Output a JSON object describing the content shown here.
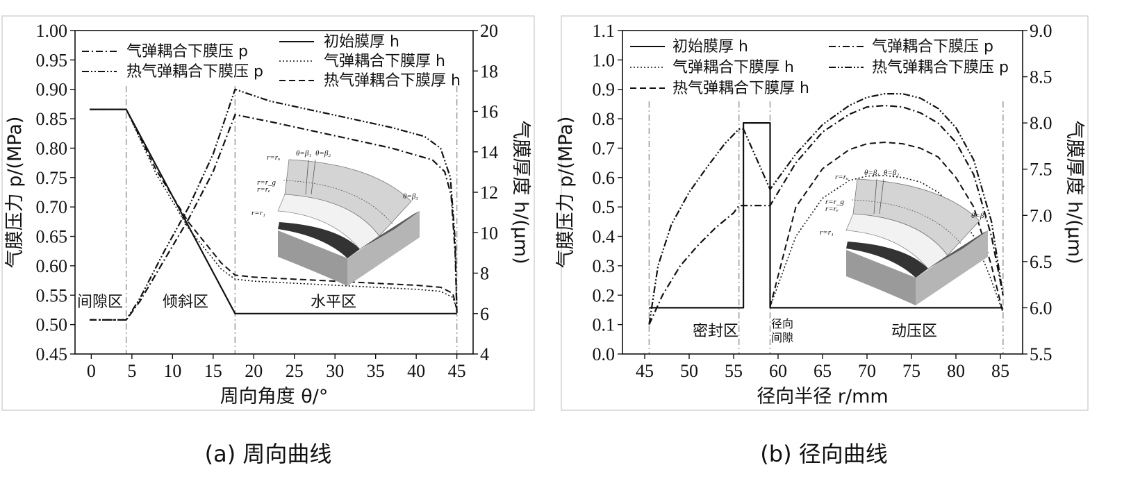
{
  "chart_data": [
    {
      "type": "line",
      "caption": "(a) 周向曲线",
      "xlabel": "周向角度 θ/°",
      "ylabel_left": "气膜压力 p/(MPa)",
      "ylabel_right": "气膜厚度 h/(μm)",
      "xlim": [
        -2,
        47
      ],
      "ylim_left": [
        0.45,
        1.0
      ],
      "ylim_right": [
        4,
        20
      ],
      "xticks": [
        "0",
        "5",
        "10",
        "15",
        "20",
        "25",
        "30",
        "35",
        "40",
        "45"
      ],
      "yticks_left": [
        "0.45",
        "0.50",
        "0.55",
        "0.60",
        "0.65",
        "0.70",
        "0.75",
        "0.80",
        "0.85",
        "0.90",
        "0.95",
        "1.00"
      ],
      "yticks_right": [
        "4",
        "6",
        "8",
        "10",
        "12",
        "14",
        "16",
        "18",
        "20"
      ],
      "regions": [
        "间隙区",
        "倾斜区",
        "水平区"
      ],
      "region_boundaries": [
        4.3,
        17.7,
        45.0
      ],
      "inset_labels": [
        "r=rₒ",
        "θ=β₁",
        "θ=β₂",
        "r=r_g",
        "r=rₑ",
        "θ=β₃",
        "r=r₁"
      ],
      "series": [
        {
          "name": "初始膜厚 h",
          "axis": "right",
          "style": "solid",
          "x": [
            -0.2,
            4.3,
            17.7,
            45.0
          ],
          "y": [
            16.1,
            16.1,
            6.0,
            6.0
          ]
        },
        {
          "name": "气弹耦合下膜厚 h",
          "axis": "right",
          "style": "dotted",
          "x": [
            -0.2,
            4.3,
            8,
            12,
            16,
            17.7,
            20,
            25,
            30,
            35,
            40,
            43,
            44.5,
            45.0
          ],
          "y": [
            16.1,
            16.1,
            12.9,
            10.2,
            8.2,
            7.7,
            7.6,
            7.5,
            7.4,
            7.3,
            7.2,
            7.1,
            6.8,
            6.2
          ]
        },
        {
          "name": "热气弹耦合下膜厚 h",
          "axis": "right",
          "style": "dashed",
          "x": [
            -0.2,
            4.3,
            8,
            12,
            16,
            17.7,
            20,
            25,
            30,
            35,
            40,
            43,
            44.5,
            45.0
          ],
          "y": [
            16.1,
            16.1,
            13.1,
            10.5,
            8.5,
            7.9,
            7.8,
            7.7,
            7.6,
            7.5,
            7.4,
            7.3,
            7.0,
            6.2
          ]
        },
        {
          "name": "气弹耦合下膜压 p",
          "axis": "left",
          "style": "dashdot",
          "x": [
            -0.2,
            4.3,
            6,
            9,
            12,
            15,
            17.7,
            22,
            27,
            32,
            37,
            42,
            43.5,
            44.3,
            44.8,
            45.0
          ],
          "y": [
            0.508,
            0.508,
            0.54,
            0.61,
            0.68,
            0.76,
            0.857,
            0.845,
            0.83,
            0.815,
            0.8,
            0.78,
            0.76,
            0.72,
            0.62,
            0.52
          ]
        },
        {
          "name": "热气弹耦合下膜压 p",
          "axis": "left",
          "style": "dashdotdot",
          "x": [
            -0.2,
            4.3,
            6,
            9,
            12,
            15,
            17.7,
            22,
            27,
            32,
            37,
            41,
            43,
            44.2,
            44.8,
            45.0
          ],
          "y": [
            0.508,
            0.508,
            0.545,
            0.625,
            0.7,
            0.79,
            0.9,
            0.88,
            0.865,
            0.85,
            0.835,
            0.82,
            0.8,
            0.75,
            0.64,
            0.52
          ]
        }
      ]
    },
    {
      "type": "line",
      "caption": "(b) 径向曲线",
      "xlabel": "径向半径 r/mm",
      "ylabel_left": "气膜压力 p/(MPa)",
      "ylabel_right": "气膜厚度 h/(μm)",
      "xlim": [
        42.5,
        87.5
      ],
      "ylim_left": [
        0.0,
        1.1
      ],
      "ylim_right": [
        5.5,
        9.0
      ],
      "xticks": [
        "45",
        "50",
        "55",
        "60",
        "65",
        "70",
        "75",
        "80",
        "85"
      ],
      "yticks_left": [
        "0.0",
        "0.1",
        "0.2",
        "0.3",
        "0.4",
        "0.5",
        "0.6",
        "0.7",
        "0.8",
        "0.9",
        "1.0",
        "1.1"
      ],
      "yticks_right": [
        "5.5",
        "6.0",
        "6.5",
        "7.0",
        "7.5",
        "8.0",
        "8.5",
        "9.0"
      ],
      "regions": [
        "密封区",
        "径向",
        "间隙",
        "动压区"
      ],
      "region_boundaries": [
        45.5,
        55.6,
        59.1,
        85.3
      ],
      "inset_labels": [
        "r=rₒ",
        "θ=β₁",
        "θ=β₂",
        "r=r_g",
        "r=rₑ",
        "θ=β₃",
        "r=r₁"
      ],
      "series": [
        {
          "name": "初始膜厚 h",
          "axis": "right",
          "style": "solid",
          "x": [
            45.5,
            55.6,
            56.1,
            56.1,
            59.1,
            59.1,
            85.3
          ],
          "y": [
            6.0,
            6.0,
            6.0,
            8.0,
            8.0,
            6.0,
            6.0
          ]
        },
        {
          "name": "气弹耦合下膜厚 h",
          "axis": "left",
          "style": "dotted",
          "x": [
            59.1,
            62,
            65,
            68,
            70,
            72,
            74,
            76,
            78,
            80,
            82,
            84,
            85.3
          ],
          "y": [
            0.16,
            0.4,
            0.53,
            0.59,
            0.605,
            0.607,
            0.6,
            0.585,
            0.55,
            0.49,
            0.4,
            0.25,
            0.14
          ]
        },
        {
          "name": "热气弹耦合下膜厚 h",
          "axis": "left",
          "style": "dashed",
          "x": [
            59.1,
            62,
            65,
            68,
            70,
            72,
            74,
            76,
            78,
            80,
            82,
            84,
            85.3
          ],
          "y": [
            0.16,
            0.5,
            0.63,
            0.695,
            0.715,
            0.72,
            0.715,
            0.7,
            0.67,
            0.6,
            0.5,
            0.3,
            0.14
          ]
        },
        {
          "name": "气弹耦合下膜压 p",
          "axis": "left",
          "style": "dashdot",
          "x": [
            45.5,
            47,
            49,
            51,
            53,
            55,
            55.6,
            59.1,
            62,
            65,
            68,
            70,
            72,
            74,
            76,
            78,
            80,
            82,
            84,
            85.3
          ],
          "y": [
            0.1,
            0.2,
            0.3,
            0.37,
            0.43,
            0.48,
            0.505,
            0.505,
            0.65,
            0.755,
            0.815,
            0.84,
            0.845,
            0.84,
            0.82,
            0.785,
            0.72,
            0.61,
            0.4,
            0.2
          ]
        },
        {
          "name": "热气弹耦合下膜压 p",
          "axis": "left",
          "style": "dashdotdot",
          "x": [
            45.5,
            46.5,
            48,
            50,
            52,
            54,
            55.6,
            56.1,
            59.1,
            62,
            65,
            68,
            70,
            72,
            74,
            76,
            78,
            80,
            82,
            84,
            85.3
          ],
          "y": [
            0.1,
            0.3,
            0.44,
            0.55,
            0.635,
            0.715,
            0.765,
            0.765,
            0.56,
            0.68,
            0.78,
            0.845,
            0.873,
            0.885,
            0.885,
            0.87,
            0.835,
            0.77,
            0.66,
            0.45,
            0.2
          ]
        }
      ]
    }
  ]
}
